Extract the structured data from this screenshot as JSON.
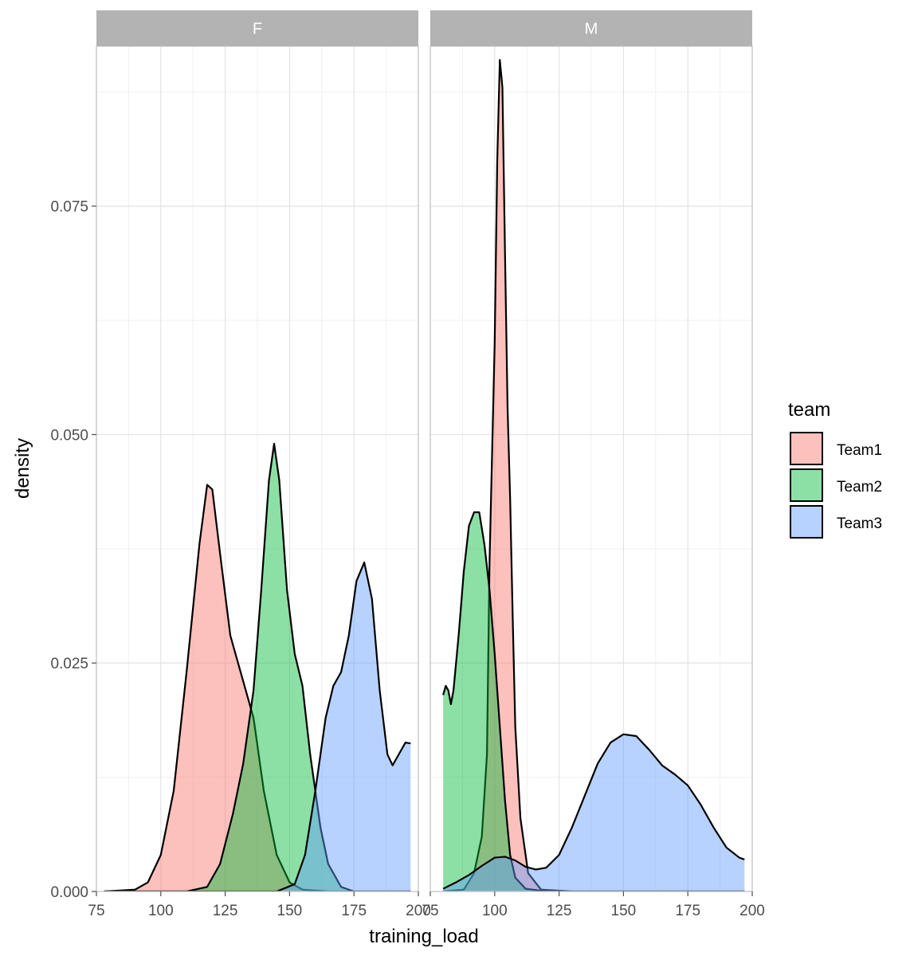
{
  "chart_data": {
    "type": "area",
    "subtype": "density",
    "xlabel": "training_load",
    "ylabel": "density",
    "xlim": [
      75,
      200
    ],
    "ylim": [
      0,
      0.0925
    ],
    "x_ticks": [
      "75",
      "100",
      "125",
      "150",
      "175",
      "200"
    ],
    "y_ticks": [
      "0.000",
      "0.025",
      "0.050",
      "0.075"
    ],
    "grid": true,
    "facet_var": "sex",
    "legend": {
      "title": "team",
      "position": "right"
    },
    "series_colors": {
      "Team1": "#F8766D",
      "Team2": "#00BA38",
      "Team3": "#619CFF"
    },
    "panels": [
      {
        "label": "F",
        "series": [
          {
            "name": "Team1",
            "points": [
              [
                78,
                0
              ],
              [
                90,
                0.0002
              ],
              [
                95,
                0.001
              ],
              [
                100,
                0.004
              ],
              [
                105,
                0.011
              ],
              [
                110,
                0.024
              ],
              [
                115,
                0.038
              ],
              [
                118,
                0.0445
              ],
              [
                120,
                0.044
              ],
              [
                123,
                0.037
              ],
              [
                127,
                0.028
              ],
              [
                132,
                0.023
              ],
              [
                136,
                0.019
              ],
              [
                140,
                0.011
              ],
              [
                145,
                0.004
              ],
              [
                150,
                0.001
              ],
              [
                155,
                0.0002
              ],
              [
                165,
                0
              ],
              [
                197,
                0
              ]
            ]
          },
          {
            "name": "Team2",
            "points": [
              [
                78,
                0
              ],
              [
                110,
                0
              ],
              [
                118,
                0.0005
              ],
              [
                123,
                0.003
              ],
              [
                128,
                0.0085
              ],
              [
                132,
                0.014
              ],
              [
                136,
                0.022
              ],
              [
                139,
                0.033
              ],
              [
                142,
                0.045
              ],
              [
                144,
                0.049
              ],
              [
                146,
                0.045
              ],
              [
                149,
                0.033
              ],
              [
                152,
                0.026
              ],
              [
                155,
                0.0225
              ],
              [
                158,
                0.015
              ],
              [
                162,
                0.007
              ],
              [
                165,
                0.003
              ],
              [
                170,
                0.0005
              ],
              [
                175,
                0
              ],
              [
                197,
                0
              ]
            ]
          },
          {
            "name": "Team3",
            "points": [
              [
                78,
                0
              ],
              [
                145,
                0
              ],
              [
                152,
                0.0008
              ],
              [
                156,
                0.004
              ],
              [
                160,
                0.011
              ],
              [
                164,
                0.019
              ],
              [
                167,
                0.0225
              ],
              [
                170,
                0.024
              ],
              [
                173,
                0.028
              ],
              [
                176,
                0.034
              ],
              [
                179,
                0.036
              ],
              [
                182,
                0.032
              ],
              [
                185,
                0.022
              ],
              [
                188,
                0.015
              ],
              [
                190,
                0.0138
              ],
              [
                192,
                0.0148
              ],
              [
                195,
                0.0163
              ],
              [
                197,
                0.0162
              ]
            ]
          }
        ]
      },
      {
        "label": "M",
        "series": [
          {
            "name": "Team1",
            "points": [
              [
                80,
                0
              ],
              [
                88,
                0.0002
              ],
              [
                92,
                0.002
              ],
              [
                95,
                0.006
              ],
              [
                97,
                0.015
              ],
              [
                98,
                0.036
              ],
              [
                100,
                0.06
              ],
              [
                101,
                0.08
              ],
              [
                102,
                0.091
              ],
              [
                103,
                0.088
              ],
              [
                104,
                0.07
              ],
              [
                105,
                0.053
              ],
              [
                106,
                0.043
              ],
              [
                107,
                0.03
              ],
              [
                108,
                0.018
              ],
              [
                110,
                0.008
              ],
              [
                113,
                0.002
              ],
              [
                118,
                0.0002
              ],
              [
                130,
                0
              ],
              [
                197,
                0
              ]
            ]
          },
          {
            "name": "Team2",
            "points": [
              [
                80,
                0.0215
              ],
              [
                81,
                0.0225
              ],
              [
                82,
                0.022
              ],
              [
                83,
                0.0205
              ],
              [
                84,
                0.022
              ],
              [
                86,
                0.028
              ],
              [
                88,
                0.035
              ],
              [
                90,
                0.04
              ],
              [
                92,
                0.0415
              ],
              [
                94,
                0.0415
              ],
              [
                96,
                0.038
              ],
              [
                98,
                0.033
              ],
              [
                100,
                0.026
              ],
              [
                102,
                0.018
              ],
              [
                104,
                0.01
              ],
              [
                106,
                0.004
              ],
              [
                108,
                0.0015
              ],
              [
                112,
                0.0003
              ],
              [
                120,
                0
              ],
              [
                197,
                0
              ]
            ]
          },
          {
            "name": "Team3",
            "points": [
              [
                80,
                0.0003
              ],
              [
                85,
                0.001
              ],
              [
                90,
                0.0018
              ],
              [
                95,
                0.0028
              ],
              [
                100,
                0.0037
              ],
              [
                104,
                0.0038
              ],
              [
                108,
                0.0034
              ],
              [
                112,
                0.0027
              ],
              [
                116,
                0.0024
              ],
              [
                120,
                0.0026
              ],
              [
                125,
                0.004
              ],
              [
                130,
                0.007
              ],
              [
                135,
                0.0105
              ],
              [
                140,
                0.014
              ],
              [
                145,
                0.0163
              ],
              [
                150,
                0.0172
              ],
              [
                155,
                0.017
              ],
              [
                160,
                0.0155
              ],
              [
                165,
                0.0138
              ],
              [
                170,
                0.0128
              ],
              [
                175,
                0.0116
              ],
              [
                180,
                0.0095
              ],
              [
                185,
                0.007
              ],
              [
                190,
                0.0048
              ],
              [
                195,
                0.0037
              ],
              [
                197,
                0.0035
              ]
            ]
          }
        ]
      }
    ]
  }
}
